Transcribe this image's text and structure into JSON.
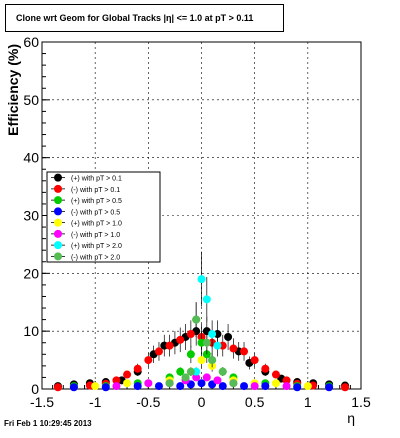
{
  "footer": "Fri Feb  1 10:29:45 2013",
  "chart_data": {
    "type": "scatter",
    "title": "Clone wrt Geom for Global Tracks |η| <= 1.0 at pT > 0.11",
    "xlabel": "η",
    "ylabel": "Efficiency (%)",
    "xlim": [
      -1.5,
      1.5
    ],
    "ylim": [
      0,
      60
    ],
    "xticks": [
      -1.5,
      -1,
      -0.5,
      0,
      0.5,
      1,
      1.5
    ],
    "xtick_labels": [
      "-1.5",
      "-1",
      "-0.5",
      "0",
      "0.5",
      "1",
      "1.5"
    ],
    "yticks": [
      0,
      10,
      20,
      30,
      40,
      50,
      60
    ],
    "ytick_labels": [
      "0",
      "10",
      "20",
      "30",
      "40",
      "50",
      "60"
    ],
    "grid": true,
    "legend_position": "left, middle",
    "series": [
      {
        "name": "(+) with pT > 0.1",
        "color": "#000000",
        "x": [
          -1.35,
          -1.2,
          -1.05,
          -0.9,
          -0.75,
          -0.6,
          -0.45,
          -0.35,
          -0.25,
          -0.15,
          -0.05,
          0.05,
          0.15,
          0.25,
          0.35,
          0.45,
          0.6,
          0.75,
          0.9,
          1.05,
          1.2,
          1.35
        ],
        "y": [
          0.5,
          0.8,
          1.0,
          1.2,
          1.5,
          3.0,
          6.0,
          7.5,
          8.0,
          9.0,
          10.0,
          10.0,
          9.5,
          9.0,
          6.5,
          4.5,
          3.0,
          1.8,
          1.2,
          1.0,
          0.8,
          0.6
        ]
      },
      {
        "name": "(-) with pT > 0.1",
        "color": "#ff0000",
        "x": [
          -1.35,
          -1.2,
          -1.05,
          -0.9,
          -0.8,
          -0.7,
          -0.6,
          -0.5,
          -0.4,
          -0.3,
          -0.2,
          -0.1,
          0.0,
          0.1,
          0.2,
          0.3,
          0.4,
          0.5,
          0.6,
          0.7,
          0.8,
          0.9,
          1.05,
          1.2,
          1.35
        ],
        "y": [
          0.3,
          0.4,
          0.6,
          0.9,
          1.5,
          2.5,
          3.5,
          5.0,
          6.5,
          7.5,
          8.5,
          9.5,
          9.0,
          8.0,
          7.5,
          7.0,
          6.5,
          5.0,
          3.5,
          2.5,
          1.5,
          0.9,
          0.6,
          0.4,
          0.3
        ]
      },
      {
        "name": "(+) with pT > 0.5",
        "color": "#00cc00",
        "x": [
          -1.2,
          -0.9,
          -0.6,
          -0.3,
          -0.2,
          -0.1,
          -0.05,
          0.0,
          0.05,
          0.1,
          0.2,
          0.3,
          0.6,
          0.9,
          1.2
        ],
        "y": [
          0.5,
          0.5,
          1.0,
          2.0,
          3.0,
          6.0,
          12.0,
          8.0,
          6.0,
          5.0,
          3.0,
          2.0,
          1.0,
          0.5,
          0.5
        ]
      },
      {
        "name": "(-) with pT > 0.5",
        "color": "#0000ff",
        "x": [
          -1.2,
          -0.9,
          -0.6,
          -0.4,
          -0.2,
          -0.1,
          0.0,
          0.1,
          0.2,
          0.4,
          0.6,
          0.9,
          1.2
        ],
        "y": [
          0.3,
          0.3,
          0.5,
          0.5,
          0.5,
          0.8,
          1.0,
          0.8,
          0.5,
          0.5,
          0.5,
          0.3,
          0.3
        ]
      },
      {
        "name": "(+) with pT > 1.0",
        "color": "#ffff00",
        "x": [
          -1.0,
          -0.7,
          -0.5,
          -0.3,
          -0.1,
          0.0,
          0.1,
          0.3,
          0.5,
          0.7,
          1.0
        ],
        "y": [
          0.5,
          1.0,
          1.0,
          1.5,
          3.0,
          5.0,
          4.0,
          1.5,
          1.0,
          1.0,
          0.5
        ]
      },
      {
        "name": "(-) with pT > 1.0",
        "color": "#ff00ff",
        "x": [
          -0.8,
          -0.5,
          -0.3,
          -0.15,
          -0.05,
          0.05,
          0.15,
          0.3,
          0.5,
          0.8
        ],
        "y": [
          0.5,
          1.0,
          1.0,
          1.5,
          2.0,
          2.0,
          1.5,
          1.0,
          0.5,
          0.5
        ]
      },
      {
        "name": "(+) with pT > 2.0",
        "color": "#00ffff",
        "x": [
          -0.05,
          0.0,
          0.05,
          0.1,
          0.15
        ],
        "y": [
          3.0,
          19.0,
          15.5,
          9.5,
          7.5
        ]
      },
      {
        "name": "(-) with pT > 2.0",
        "color": "#55bb55",
        "x": [
          -0.3,
          -0.15,
          -0.1,
          -0.05,
          0.05,
          0.1,
          0.2,
          0.3
        ],
        "y": [
          1.0,
          2.0,
          3.0,
          12.0,
          8.0,
          5.0,
          3.0,
          1.0
        ]
      }
    ]
  }
}
